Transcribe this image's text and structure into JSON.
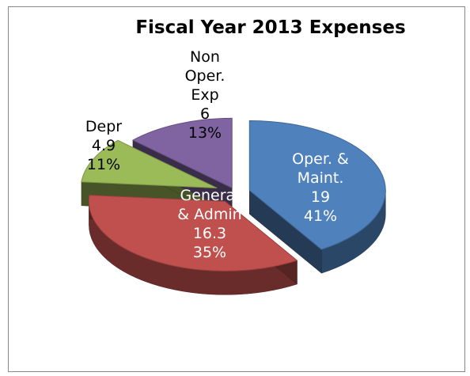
{
  "chart_data": {
    "type": "pie",
    "title": "Fiscal Year 2013 Expenses",
    "slices": [
      {
        "category": "Oper. & Maint.",
        "value": 19,
        "percent": "41%",
        "color": "#4f81bd",
        "label_lines": [
          "Oper. &",
          "Maint.",
          "19",
          "41%"
        ]
      },
      {
        "category": "General & Admin",
        "value": 16.3,
        "percent": "35%",
        "color": "#c0504d",
        "label_lines": [
          "General",
          "& Admin",
          "16.3",
          "35%"
        ]
      },
      {
        "category": "Depr",
        "value": 4.9,
        "percent": "11%",
        "color": "#9bbb59",
        "label_lines": [
          "Depr",
          "4.9",
          "11%"
        ]
      },
      {
        "category": "Non Oper. Exp",
        "value": 6,
        "percent": "13%",
        "color": "#8064a2",
        "label_lines": [
          "Non",
          "Oper.",
          "Exp",
          "6",
          "13%"
        ]
      }
    ],
    "legend": "none",
    "style": "3d-exploded"
  }
}
